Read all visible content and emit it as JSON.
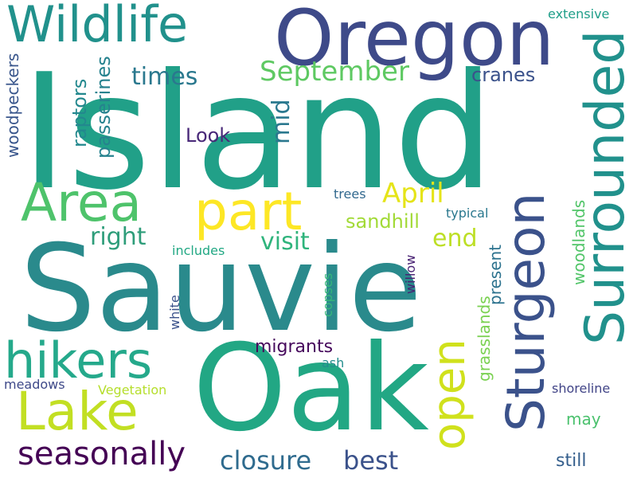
{
  "background": "#ffffff",
  "palette": [
    "#440154",
    "#3b528b",
    "#21918c",
    "#5ec962",
    "#fde725"
  ],
  "words": [
    {
      "text": "Island",
      "color": "#21a088"
    },
    {
      "text": "Sauvie",
      "color": "#2a8a8c"
    },
    {
      "text": "Oak",
      "color": "#22a784"
    },
    {
      "text": "Oregon",
      "color": "#3e4a89"
    },
    {
      "text": "Wildlife",
      "color": "#21918c"
    },
    {
      "text": "Surrounded",
      "color": "#21918c"
    },
    {
      "text": "Sturgeon",
      "color": "#3b528b"
    },
    {
      "text": "Area",
      "color": "#4ec36b"
    },
    {
      "text": "part",
      "color": "#fde725"
    },
    {
      "text": "Lake",
      "color": "#c2df23"
    },
    {
      "text": "hikers",
      "color": "#25a98b"
    },
    {
      "text": "open",
      "color": "#d0e11c"
    },
    {
      "text": "seasonally",
      "color": "#440154"
    },
    {
      "text": "closure",
      "color": "#2f6b8e"
    },
    {
      "text": "best",
      "color": "#3b528b"
    },
    {
      "text": "April",
      "color": "#e5e419"
    },
    {
      "text": "September",
      "color": "#5ec962"
    },
    {
      "text": "times",
      "color": "#2a788e"
    },
    {
      "text": "mid",
      "color": "#2a788e"
    },
    {
      "text": "right",
      "color": "#2e9d7a"
    },
    {
      "text": "visit",
      "color": "#2fb47c"
    },
    {
      "text": "end",
      "color": "#bddf26"
    },
    {
      "text": "sandhill",
      "color": "#a2da37"
    },
    {
      "text": "passerines",
      "color": "#26828e"
    },
    {
      "text": "raptors",
      "color": "#23888e"
    },
    {
      "text": "woodpeckers",
      "color": "#39568c"
    },
    {
      "text": "cranes",
      "color": "#3b528b"
    },
    {
      "text": "Look",
      "color": "#482878"
    },
    {
      "text": "migrants",
      "color": "#46085c"
    },
    {
      "text": "extensive",
      "color": "#1f9e89"
    },
    {
      "text": "grasslands",
      "color": "#7ad151"
    },
    {
      "text": "woodlands",
      "color": "#52c569"
    },
    {
      "text": "present",
      "color": "#2c728e"
    },
    {
      "text": "may",
      "color": "#4ac16d"
    },
    {
      "text": "still",
      "color": "#355f8d"
    },
    {
      "text": "shoreline",
      "color": "#414487"
    },
    {
      "text": "meadows",
      "color": "#3e4989"
    },
    {
      "text": "Vegetation",
      "color": "#b5de2b"
    },
    {
      "text": "ash",
      "color": "#228d8d"
    },
    {
      "text": "includes",
      "color": "#22a884"
    },
    {
      "text": "trees",
      "color": "#31688e"
    },
    {
      "text": "typical",
      "color": "#2a788e"
    },
    {
      "text": "copses",
      "color": "#35b779"
    },
    {
      "text": "willow",
      "color": "#482173"
    },
    {
      "text": "white",
      "color": "#3b528b"
    }
  ]
}
